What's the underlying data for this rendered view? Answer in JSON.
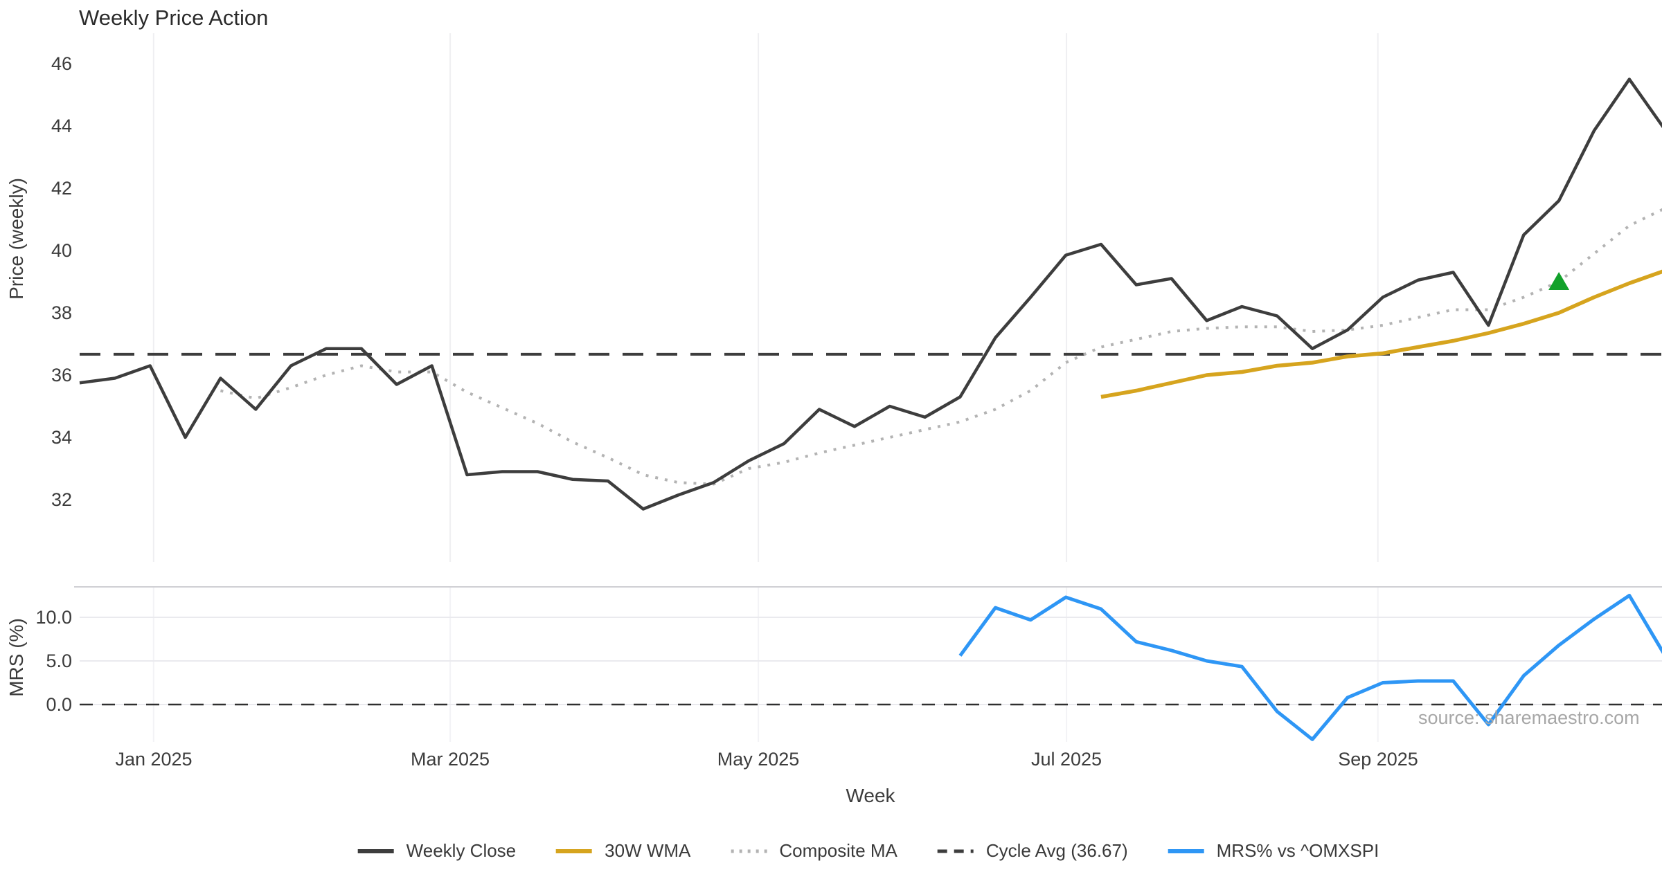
{
  "title": "Weekly Price Action",
  "source_watermark": "source: sharemaestro.com",
  "axes": {
    "price_ylabel": "Price (weekly)",
    "mrs_ylabel": "MRS (%)",
    "xlabel": "Week",
    "price_ticks": [
      "46",
      "44",
      "42",
      "40",
      "38",
      "36",
      "34",
      "32"
    ],
    "mrs_ticks": [
      "10.0",
      "5.0",
      "0.0"
    ],
    "month_ticks": [
      "Jan 2025",
      "Mar 2025",
      "May 2025",
      "Jul 2025",
      "Sep 2025"
    ]
  },
  "legend": {
    "items": [
      {
        "label": "Weekly Close",
        "style": "solid",
        "color": "#3d3d3d"
      },
      {
        "label": "30W WMA",
        "style": "solid",
        "color": "#d6a41e"
      },
      {
        "label": "Composite MA",
        "style": "dotted",
        "color": "#b3b3b3"
      },
      {
        "label": "Cycle Avg (36.67)",
        "style": "dashed",
        "color": "#3d3d3d"
      },
      {
        "label": "MRS% vs ^OMXSPI",
        "style": "solid",
        "color": "#2e96f5"
      }
    ]
  },
  "chart_data": {
    "type": "line",
    "title": "Weekly Price Action",
    "xlabel": "Week",
    "x_unit": "week_index",
    "n_weeks": 46,
    "x_tick_labels": [
      "Jan 2025",
      "Mar 2025",
      "May 2025",
      "Jul 2025",
      "Sep 2025"
    ],
    "grid": "vertical-months-and-mrs-horizontals",
    "legend_position": "bottom-center",
    "panels": [
      {
        "name": "price",
        "ylabel": "Price (weekly)",
        "yticks": [
          46,
          44,
          42,
          40,
          38,
          36,
          34,
          32
        ],
        "ylim": [
          31.0,
          47.0
        ],
        "series": [
          {
            "name": "Weekly Close",
            "color": "#3d3d3d",
            "style": "solid",
            "start_week": 0,
            "values": [
              35.75,
              35.9,
              36.3,
              34.0,
              35.9,
              34.9,
              36.3,
              36.85,
              36.85,
              35.7,
              36.3,
              32.8,
              32.9,
              32.9,
              32.65,
              32.6,
              31.7,
              32.15,
              32.55,
              33.25,
              33.8,
              34.9,
              34.35,
              35.0,
              34.65,
              35.3,
              37.2,
              38.5,
              39.85,
              40.2,
              38.9,
              39.1,
              37.75,
              38.2,
              37.9,
              36.85,
              37.45,
              38.5,
              39.05,
              39.3,
              37.6,
              40.5,
              41.6,
              43.85,
              45.5,
              43.9
            ]
          },
          {
            "name": "Composite MA",
            "color": "#b3b3b3",
            "style": "dotted",
            "start_week": 4,
            "values": [
              35.5,
              35.25,
              35.6,
              36.0,
              36.3,
              36.1,
              36.1,
              35.45,
              34.95,
              34.45,
              33.85,
              33.35,
              32.8,
              32.55,
              32.5,
              33.0,
              33.2,
              33.5,
              33.75,
              34.0,
              34.25,
              34.5,
              34.9,
              35.5,
              36.4,
              36.9,
              37.15,
              37.4,
              37.5,
              37.55,
              37.55,
              37.4,
              37.45,
              37.6,
              37.85,
              38.1,
              38.1,
              38.5,
              39.0,
              39.9,
              40.8,
              41.35
            ]
          },
          {
            "name": "30W WMA",
            "color": "#d6a41e",
            "style": "solid",
            "start_week": 29,
            "values": [
              35.3,
              35.5,
              35.75,
              36.0,
              36.1,
              36.3,
              36.4,
              36.6,
              36.7,
              36.9,
              37.1,
              37.35,
              37.65,
              38.0,
              38.5,
              38.95,
              39.35
            ]
          },
          {
            "name": "Cycle Avg",
            "color": "#3d3d3d",
            "style": "dashed",
            "constant": 36.67
          }
        ],
        "markers": [
          {
            "name": "signal-triangle-up",
            "color": "#12a12b",
            "week": 42,
            "value": 39.0
          }
        ]
      },
      {
        "name": "mrs",
        "ylabel": "MRS (%)",
        "yticks": [
          10.0,
          5.0,
          0.0
        ],
        "ylim": [
          -4.3,
          13.5
        ],
        "zero_line": {
          "style": "dashed",
          "color": "#2f2f2f",
          "value": 0
        },
        "series": [
          {
            "name": "MRS% vs ^OMXSPI",
            "color": "#2e96f5",
            "style": "solid",
            "start_week": 25,
            "values": [
              5.6,
              11.1,
              9.7,
              12.3,
              10.95,
              7.2,
              6.2,
              5.0,
              4.35,
              -0.8,
              -4.0,
              0.8,
              2.5,
              2.7,
              2.7,
              -2.3,
              3.3,
              6.8,
              9.8,
              12.5,
              5.7
            ]
          }
        ]
      }
    ]
  }
}
